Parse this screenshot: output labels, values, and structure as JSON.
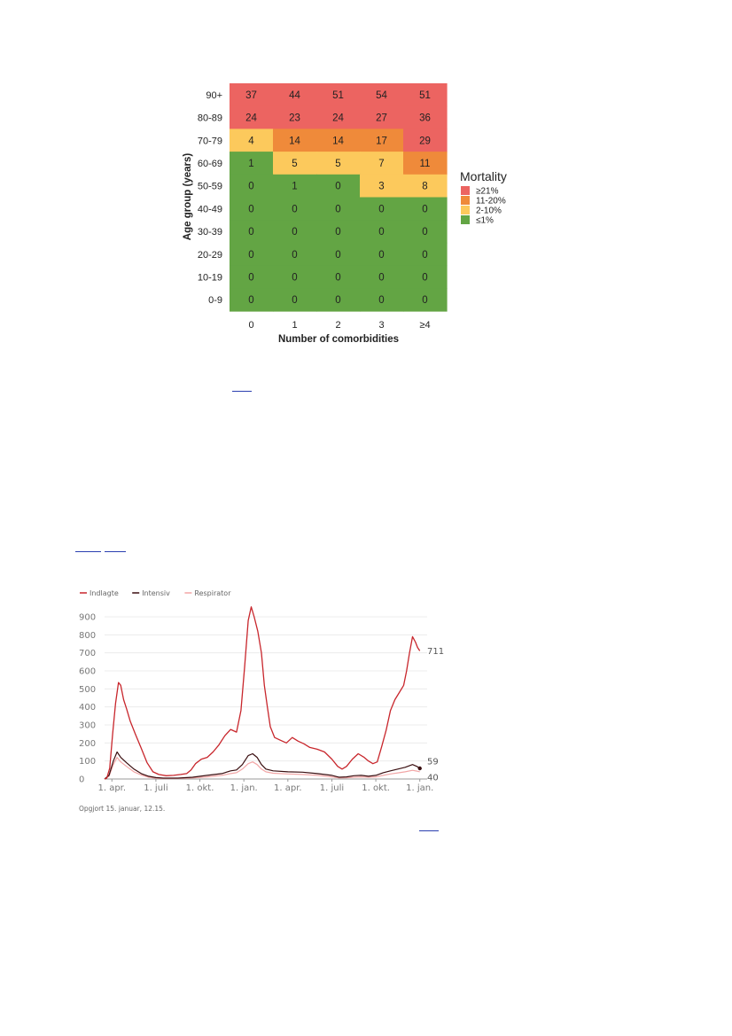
{
  "chart_data": [
    {
      "type": "heatmap",
      "title": "",
      "xlabel": "Number of comorbidities",
      "ylabel": "Age group (years)",
      "x_categories": [
        "0",
        "1",
        "2",
        "3",
        "≥4"
      ],
      "y_categories": [
        "90+",
        "80-89",
        "70-79",
        "60-69",
        "50-59",
        "40-49",
        "30-39",
        "20-29",
        "10-19",
        "0-9"
      ],
      "values": [
        [
          37,
          44,
          51,
          54,
          51
        ],
        [
          24,
          23,
          24,
          27,
          36
        ],
        [
          4,
          14,
          14,
          17,
          29
        ],
        [
          1,
          5,
          5,
          7,
          11
        ],
        [
          0,
          1,
          0,
          3,
          8
        ],
        [
          0,
          0,
          0,
          0,
          0
        ],
        [
          0,
          0,
          0,
          0,
          0
        ],
        [
          0,
          0,
          0,
          0,
          0
        ],
        [
          0,
          0,
          0,
          0,
          0
        ],
        [
          0,
          0,
          0,
          0,
          0
        ]
      ],
      "legend": {
        "title": "Mortality",
        "placement": "right",
        "items": [
          {
            "label": "≥21%",
            "color": "#ec6461"
          },
          {
            "label": "11-20%",
            "color": "#ef8a3a"
          },
          {
            "label": "2-10%",
            "color": "#fcc95c"
          },
          {
            "label": "≤1%",
            "color": "#63a544"
          }
        ]
      }
    },
    {
      "type": "line",
      "title": "",
      "xlabel": "",
      "ylabel": "",
      "ylim": [
        0,
        900
      ],
      "y_ticks": [
        "0",
        "100",
        "200",
        "300",
        "400",
        "500",
        "600",
        "700",
        "800",
        "900"
      ],
      "x_ticks": [
        "1. apr.",
        "1. juli",
        "1. okt.",
        "1. jan.",
        "1. apr.",
        "1. juli",
        "1. okt.",
        "1. jan."
      ],
      "grid": true,
      "legend_placement": "top-left",
      "series": [
        {
          "name": "Indlagte",
          "color": "#c8262c",
          "end_label": "711",
          "points": [
            [
              0,
              0
            ],
            [
              0.15,
              5
            ],
            [
              0.35,
              60
            ],
            [
              0.55,
              250
            ],
            [
              0.75,
              420
            ],
            [
              0.95,
              535
            ],
            [
              1.1,
              520
            ],
            [
              1.3,
              440
            ],
            [
              1.5,
              390
            ],
            [
              1.75,
              320
            ],
            [
              2.1,
              250
            ],
            [
              2.5,
              170
            ],
            [
              2.9,
              90
            ],
            [
              3.3,
              40
            ],
            [
              3.7,
              25
            ],
            [
              4.2,
              18
            ],
            [
              4.7,
              20
            ],
            [
              5.2,
              25
            ],
            [
              5.6,
              30
            ],
            [
              5.9,
              50
            ],
            [
              6.2,
              85
            ],
            [
              6.6,
              110
            ],
            [
              7.0,
              120
            ],
            [
              7.4,
              150
            ],
            [
              7.8,
              190
            ],
            [
              8.2,
              240
            ],
            [
              8.6,
              275
            ],
            [
              9.0,
              260
            ],
            [
              9.3,
              380
            ],
            [
              9.55,
              620
            ],
            [
              9.8,
              880
            ],
            [
              10.0,
              955
            ],
            [
              10.2,
              900
            ],
            [
              10.45,
              820
            ],
            [
              10.7,
              700
            ],
            [
              10.9,
              520
            ],
            [
              11.1,
              400
            ],
            [
              11.3,
              290
            ],
            [
              11.6,
              230
            ],
            [
              12.0,
              215
            ],
            [
              12.4,
              200
            ],
            [
              12.8,
              230
            ],
            [
              13.2,
              210
            ],
            [
              13.6,
              195
            ],
            [
              14.0,
              175
            ],
            [
              14.5,
              165
            ],
            [
              15.0,
              150
            ],
            [
              15.5,
              110
            ],
            [
              15.9,
              70
            ],
            [
              16.2,
              55
            ],
            [
              16.5,
              70
            ],
            [
              16.9,
              110
            ],
            [
              17.3,
              140
            ],
            [
              17.7,
              120
            ],
            [
              18.0,
              100
            ],
            [
              18.3,
              85
            ],
            [
              18.6,
              95
            ],
            [
              18.9,
              180
            ],
            [
              19.2,
              270
            ],
            [
              19.5,
              380
            ],
            [
              19.8,
              440
            ],
            [
              20.1,
              480
            ],
            [
              20.4,
              520
            ],
            [
              20.6,
              600
            ],
            [
              20.8,
              700
            ],
            [
              21.0,
              790
            ],
            [
              21.2,
              760
            ],
            [
              21.35,
              730
            ],
            [
              21.5,
              711
            ]
          ]
        },
        {
          "name": "Intensiv",
          "color": "#3a0e10",
          "end_label": "59",
          "points": [
            [
              0,
              0
            ],
            [
              0.3,
              20
            ],
            [
              0.6,
              100
            ],
            [
              0.85,
              150
            ],
            [
              1.1,
              120
            ],
            [
              1.5,
              90
            ],
            [
              2.0,
              55
            ],
            [
              2.5,
              30
            ],
            [
              3.0,
              15
            ],
            [
              3.5,
              8
            ],
            [
              4.0,
              5
            ],
            [
              5.0,
              5
            ],
            [
              6.0,
              10
            ],
            [
              7.0,
              20
            ],
            [
              8.0,
              30
            ],
            [
              8.6,
              45
            ],
            [
              9.0,
              50
            ],
            [
              9.4,
              80
            ],
            [
              9.8,
              130
            ],
            [
              10.1,
              140
            ],
            [
              10.4,
              120
            ],
            [
              10.7,
              80
            ],
            [
              11.0,
              55
            ],
            [
              11.5,
              45
            ],
            [
              12.5,
              40
            ],
            [
              13.5,
              38
            ],
            [
              14.5,
              30
            ],
            [
              15.5,
              20
            ],
            [
              16.0,
              10
            ],
            [
              16.5,
              12
            ],
            [
              17.0,
              18
            ],
            [
              17.5,
              20
            ],
            [
              18.0,
              15
            ],
            [
              18.5,
              20
            ],
            [
              19.0,
              35
            ],
            [
              19.5,
              45
            ],
            [
              20.0,
              55
            ],
            [
              20.5,
              65
            ],
            [
              21.0,
              80
            ],
            [
              21.3,
              70
            ],
            [
              21.5,
              59
            ]
          ]
        },
        {
          "name": "Respirator",
          "color": "#f2a6a6",
          "end_label": "40",
          "points": [
            [
              0,
              0
            ],
            [
              0.3,
              15
            ],
            [
              0.6,
              80
            ],
            [
              0.85,
              120
            ],
            [
              1.1,
              95
            ],
            [
              1.5,
              70
            ],
            [
              2.0,
              40
            ],
            [
              2.5,
              22
            ],
            [
              3.0,
              10
            ],
            [
              3.5,
              5
            ],
            [
              4.0,
              3
            ],
            [
              5.0,
              3
            ],
            [
              6.0,
              6
            ],
            [
              7.0,
              12
            ],
            [
              8.0,
              20
            ],
            [
              8.6,
              30
            ],
            [
              9.0,
              35
            ],
            [
              9.4,
              55
            ],
            [
              9.8,
              85
            ],
            [
              10.1,
              95
            ],
            [
              10.4,
              80
            ],
            [
              10.7,
              55
            ],
            [
              11.0,
              40
            ],
            [
              11.5,
              32
            ],
            [
              12.5,
              28
            ],
            [
              13.5,
              25
            ],
            [
              14.5,
              20
            ],
            [
              15.5,
              12
            ],
            [
              16.0,
              6
            ],
            [
              16.5,
              7
            ],
            [
              17.0,
              10
            ],
            [
              17.5,
              12
            ],
            [
              18.0,
              10
            ],
            [
              18.5,
              12
            ],
            [
              19.0,
              20
            ],
            [
              19.5,
              28
            ],
            [
              20.0,
              34
            ],
            [
              20.5,
              40
            ],
            [
              21.0,
              48
            ],
            [
              21.3,
              44
            ],
            [
              21.5,
              40
            ]
          ]
        }
      ],
      "note": "Opgjort 15. januar, 12.15."
    }
  ]
}
